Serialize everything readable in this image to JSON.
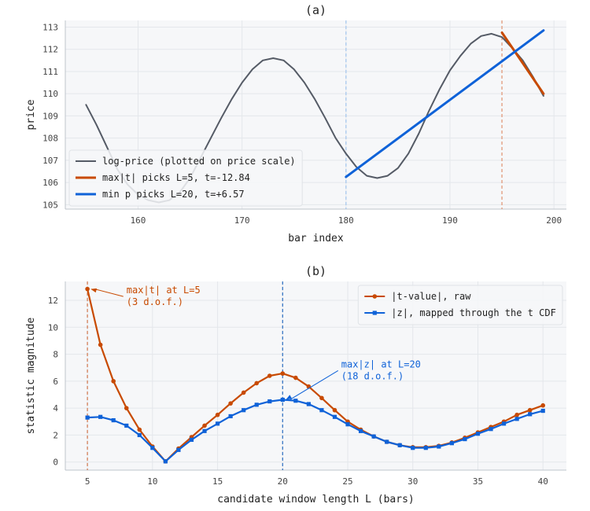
{
  "chart_data": [
    {
      "type": "line",
      "title": "(a)",
      "xlabel": "bar index",
      "ylabel": "price",
      "xlim": [
        153,
        201.2
      ],
      "ylim": [
        104.8,
        113.3
      ],
      "xticks": [
        160,
        170,
        180,
        190,
        200
      ],
      "yticks": [
        105,
        106,
        107,
        108,
        109,
        110,
        111,
        112,
        113
      ],
      "grid": true,
      "legend_position": "lower-left",
      "series": [
        {
          "name": "log-price (plotted on price scale)",
          "color": "#555b66",
          "x": [
            155,
            156,
            157,
            158,
            159,
            160,
            161,
            162,
            163,
            164,
            165,
            166,
            167,
            168,
            169,
            170,
            171,
            172,
            173,
            174,
            175,
            176,
            177,
            178,
            179,
            180,
            181,
            182,
            183,
            184,
            185,
            186,
            187,
            188,
            189,
            190,
            191,
            192,
            193,
            194,
            195,
            196,
            197,
            198,
            199
          ],
          "y": [
            109.5,
            108.6,
            107.6,
            106.6,
            105.9,
            105.45,
            105.2,
            105.1,
            105.2,
            105.55,
            106.2,
            107.1,
            108.0,
            108.9,
            109.75,
            110.5,
            111.1,
            111.5,
            111.6,
            111.5,
            111.1,
            110.5,
            109.75,
            108.9,
            108.0,
            107.3,
            106.7,
            106.3,
            106.2,
            106.3,
            106.65,
            107.3,
            108.2,
            109.25,
            110.2,
            111.05,
            111.7,
            112.25,
            112.6,
            112.7,
            112.55,
            112.05,
            111.5,
            110.75,
            109.9
          ]
        },
        {
          "name": "max|t| picks L=5, t=-12.84",
          "color": "#c84a00",
          "x": [
            195,
            199
          ],
          "y": [
            112.75,
            110.0
          ]
        },
        {
          "name": "min p picks L=20, t=+6.57",
          "color": "#0f62d8",
          "x": [
            180,
            199
          ],
          "y": [
            106.25,
            112.85
          ]
        }
      ],
      "vlines": [
        {
          "x": 180,
          "color": "#a8c8ee"
        },
        {
          "x": 195,
          "color": "#e39a7a"
        }
      ]
    },
    {
      "type": "line",
      "title": "(b)",
      "xlabel": "candidate window length L (bars)",
      "ylabel": "statistic magnitude",
      "xlim": [
        3.3,
        41.8
      ],
      "ylim": [
        -0.6,
        13.4
      ],
      "xticks": [
        5,
        10,
        15,
        20,
        25,
        30,
        35,
        40
      ],
      "yticks": [
        0,
        2,
        4,
        6,
        8,
        10,
        12
      ],
      "grid": true,
      "legend_position": "top-right",
      "series": [
        {
          "name": "|t-value|, raw",
          "color": "#c84a00",
          "marker": "circle",
          "x": [
            5,
            6,
            7,
            8,
            9,
            10,
            11,
            12,
            13,
            14,
            15,
            16,
            17,
            18,
            19,
            20,
            21,
            22,
            23,
            24,
            25,
            26,
            27,
            28,
            29,
            30,
            31,
            32,
            33,
            34,
            35,
            36,
            37,
            38,
            39,
            40
          ],
          "y": [
            12.84,
            8.7,
            6.0,
            4.0,
            2.4,
            1.15,
            0.05,
            1.0,
            1.85,
            2.7,
            3.5,
            4.35,
            5.15,
            5.85,
            6.4,
            6.57,
            6.25,
            5.6,
            4.75,
            3.85,
            3.0,
            2.4,
            1.9,
            1.5,
            1.25,
            1.1,
            1.1,
            1.2,
            1.45,
            1.8,
            2.2,
            2.6,
            3.0,
            3.5,
            3.85,
            4.2
          ]
        },
        {
          "name": "|z|, mapped through the t CDF",
          "color": "#0f62d8",
          "marker": "square",
          "x": [
            5,
            6,
            7,
            8,
            9,
            10,
            11,
            12,
            13,
            14,
            15,
            16,
            17,
            18,
            19,
            20,
            21,
            22,
            23,
            24,
            25,
            26,
            27,
            28,
            29,
            30,
            31,
            32,
            33,
            34,
            35,
            36,
            37,
            38,
            39,
            40
          ],
          "y": [
            3.3,
            3.35,
            3.1,
            2.7,
            2.0,
            1.05,
            0.05,
            0.9,
            1.65,
            2.3,
            2.85,
            3.4,
            3.85,
            4.25,
            4.5,
            4.62,
            4.55,
            4.3,
            3.85,
            3.35,
            2.8,
            2.3,
            1.9,
            1.5,
            1.25,
            1.05,
            1.05,
            1.15,
            1.4,
            1.7,
            2.1,
            2.45,
            2.85,
            3.2,
            3.55,
            3.8
          ]
        }
      ],
      "vlines": [
        {
          "x": 5,
          "color": "#d4805a"
        },
        {
          "x": 20,
          "color": "#3a78c4"
        }
      ],
      "annotations": [
        {
          "text": [
            "max|t| at L=5",
            "(3 d.o.f.)"
          ],
          "color": "#c84a00",
          "point": [
            5,
            12.84
          ],
          "text_at": [
            8,
            12.4
          ]
        },
        {
          "text": [
            "max|z| at L=20",
            "(18 d.o.f.)"
          ],
          "color": "#0f62d8",
          "point": [
            20,
            4.62
          ],
          "text_at": [
            24.5,
            6.9
          ]
        }
      ]
    }
  ]
}
